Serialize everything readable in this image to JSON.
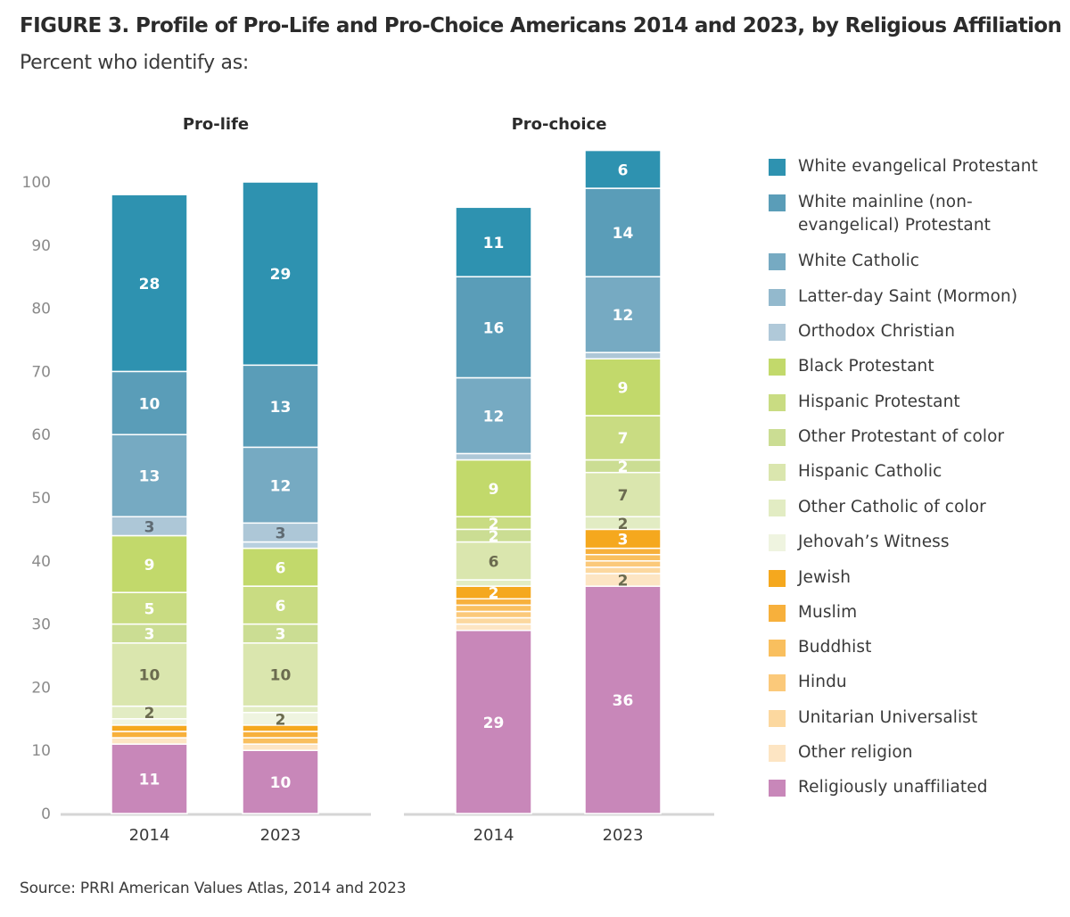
{
  "title": "FIGURE 3. Profile of Pro-Life and Pro-Choice Americans 2014 and 2023, by Religious Affiliation",
  "subtitle": "Percent who identify as:",
  "source": "Source: PRRI American Values Atlas, 2014 and 2023",
  "chart_data": {
    "type": "bar",
    "stacked": true,
    "title": "FIGURE 3. Profile of Pro-Life and Pro-Choice Americans 2014 and 2023, by Religious Affiliation",
    "subtitle": "Percent who identify as:",
    "xlabel": "",
    "ylabel": "",
    "ylim": [
      0,
      100
    ],
    "yticks": [
      0,
      10,
      20,
      30,
      40,
      50,
      60,
      70,
      80,
      90,
      100
    ],
    "grid": false,
    "legend_position": "right",
    "panels": [
      {
        "name": "Pro-life",
        "categories": [
          "2014",
          "2023"
        ]
      },
      {
        "name": "Pro-choice",
        "categories": [
          "2014",
          "2023"
        ]
      }
    ],
    "series": [
      {
        "name": "White evangelical Protestant",
        "color": "#2e92b0",
        "label_color": "#ffffff",
        "values": {
          "Pro-life": [
            28,
            29
          ],
          "Pro-choice": [
            11,
            6
          ]
        },
        "labels": {
          "Pro-life": [
            "28",
            "29"
          ],
          "Pro-choice": [
            "11",
            "6"
          ]
        }
      },
      {
        "name": "White mainline (non-evangelical) Protestant",
        "color": "#5a9db8",
        "label_color": "#ffffff",
        "values": {
          "Pro-life": [
            10,
            13
          ],
          "Pro-choice": [
            16,
            14
          ]
        },
        "labels": {
          "Pro-life": [
            "10",
            "13"
          ],
          "Pro-choice": [
            "16",
            "14"
          ]
        }
      },
      {
        "name": "White Catholic",
        "color": "#76aac2",
        "label_color": "#ffffff",
        "values": {
          "Pro-life": [
            13,
            12
          ],
          "Pro-choice": [
            12,
            12
          ]
        },
        "labels": {
          "Pro-life": [
            "13",
            "12"
          ],
          "Pro-choice": [
            "12",
            "12"
          ]
        }
      },
      {
        "name": "Latter-day Saint (Mormon)",
        "color": "#adc7d7",
        "label_color": "#5f6b73",
        "values": {
          "Pro-life": [
            3,
            3
          ],
          "Pro-choice": [
            1,
            1
          ]
        },
        "labels": {
          "Pro-life": [
            "3",
            "3"
          ],
          "Pro-choice": [
            "",
            ""
          ]
        }
      },
      {
        "name": "Orthodox Christian",
        "color": "#b8d0df",
        "label_color": "#5f6b73",
        "values": {
          "Pro-life": [
            0,
            1
          ],
          "Pro-choice": [
            0,
            0
          ]
        },
        "labels": {
          "Pro-life": [
            "",
            ""
          ],
          "Pro-choice": [
            "",
            ""
          ]
        }
      },
      {
        "name": "Black Protestant",
        "color": "#c2d96b",
        "label_color": "#ffffff",
        "values": {
          "Pro-life": [
            9,
            6
          ],
          "Pro-choice": [
            9,
            9
          ]
        },
        "labels": {
          "Pro-life": [
            "9",
            "6"
          ],
          "Pro-choice": [
            "9",
            "9"
          ]
        }
      },
      {
        "name": "Hispanic Protestant",
        "color": "#c9dc82",
        "label_color": "#ffffff",
        "values": {
          "Pro-life": [
            5,
            6
          ],
          "Pro-choice": [
            2,
            7
          ]
        },
        "labels": {
          "Pro-life": [
            "5",
            "6"
          ],
          "Pro-choice": [
            "2",
            "7"
          ]
        }
      },
      {
        "name": "Other Protestant of color",
        "color": "#cbdd93",
        "label_color": "#ffffff",
        "values": {
          "Pro-life": [
            3,
            3
          ],
          "Pro-choice": [
            2,
            2
          ]
        },
        "labels": {
          "Pro-life": [
            "3",
            "3"
          ],
          "Pro-choice": [
            "2",
            "2"
          ]
        }
      },
      {
        "name": "Hispanic Catholic",
        "color": "#dae6ae",
        "label_color": "#6b6b4f",
        "values": {
          "Pro-life": [
            10,
            10
          ],
          "Pro-choice": [
            6,
            7
          ]
        },
        "labels": {
          "Pro-life": [
            "10",
            "10"
          ],
          "Pro-choice": [
            "6",
            "7"
          ]
        }
      },
      {
        "name": "Other Catholic of color",
        "color": "#e2ecc3",
        "label_color": "#6b6b4f",
        "values": {
          "Pro-life": [
            2,
            1
          ],
          "Pro-choice": [
            1,
            2
          ]
        },
        "labels": {
          "Pro-life": [
            "2",
            ""
          ],
          "Pro-choice": [
            "",
            "2"
          ]
        }
      },
      {
        "name": "Jehovah’s Witness",
        "color": "#eff4e0",
        "label_color": "#6b6b4f",
        "values": {
          "Pro-life": [
            1,
            2
          ],
          "Pro-choice": [
            0,
            0
          ]
        },
        "labels": {
          "Pro-life": [
            "",
            "2"
          ],
          "Pro-choice": [
            "",
            ""
          ]
        }
      },
      {
        "name": "Jewish",
        "color": "#f5a81e",
        "label_color": "#ffffff",
        "values": {
          "Pro-life": [
            1,
            1
          ],
          "Pro-choice": [
            2,
            3
          ]
        },
        "labels": {
          "Pro-life": [
            "",
            ""
          ],
          "Pro-choice": [
            "2",
            "3"
          ]
        }
      },
      {
        "name": "Muslim",
        "color": "#f7b03c",
        "label_color": "#ffffff",
        "values": {
          "Pro-life": [
            1,
            1
          ],
          "Pro-choice": [
            1,
            1
          ]
        },
        "labels": {
          "Pro-life": [
            "",
            ""
          ],
          "Pro-choice": [
            "",
            ""
          ]
        }
      },
      {
        "name": "Buddhist",
        "color": "#f9bf5e",
        "label_color": "#ffffff",
        "values": {
          "Pro-life": [
            0,
            1
          ],
          "Pro-choice": [
            1,
            1
          ]
        },
        "labels": {
          "Pro-life": [
            "",
            ""
          ],
          "Pro-choice": [
            "",
            ""
          ]
        }
      },
      {
        "name": "Hindu",
        "color": "#fbc97a",
        "label_color": "#ffffff",
        "values": {
          "Pro-life": [
            0,
            0
          ],
          "Pro-choice": [
            1,
            1
          ]
        },
        "labels": {
          "Pro-life": [
            "",
            ""
          ],
          "Pro-choice": [
            "",
            ""
          ]
        }
      },
      {
        "name": "Unitarian Universalist",
        "color": "#fcd89f",
        "label_color": "#ffffff",
        "values": {
          "Pro-life": [
            0,
            0
          ],
          "Pro-choice": [
            1,
            1
          ]
        },
        "labels": {
          "Pro-life": [
            "",
            ""
          ],
          "Pro-choice": [
            "",
            ""
          ]
        }
      },
      {
        "name": "Other religion",
        "color": "#fde5c3",
        "label_color": "#6b6b4f",
        "values": {
          "Pro-life": [
            1,
            1
          ],
          "Pro-choice": [
            1,
            2
          ]
        },
        "labels": {
          "Pro-life": [
            "",
            ""
          ],
          "Pro-choice": [
            "",
            "2"
          ]
        }
      },
      {
        "name": "Religiously unaffiliated",
        "color": "#c887b9",
        "label_color": "#ffffff",
        "values": {
          "Pro-life": [
            11,
            10
          ],
          "Pro-choice": [
            29,
            36
          ]
        },
        "labels": {
          "Pro-life": [
            "11",
            "10"
          ],
          "Pro-choice": [
            "29",
            "36"
          ]
        }
      }
    ]
  },
  "legend": [
    {
      "label": "White evangelical Protestant",
      "color": "#2e92b0"
    },
    {
      "label": "White mainline (non-evangelical) Protestant",
      "color": "#5a9db8"
    },
    {
      "label": "White Catholic",
      "color": "#76aac2"
    },
    {
      "label": "Latter-day Saint (Mormon)",
      "color": "#93b9cd"
    },
    {
      "label": "Orthodox Christian",
      "color": "#b0c9d9"
    },
    {
      "label": "Black Protestant",
      "color": "#c2d96b"
    },
    {
      "label": "Hispanic Protestant",
      "color": "#c9dc82"
    },
    {
      "label": "Other Protestant of color",
      "color": "#cbdd93"
    },
    {
      "label": "Hispanic Catholic",
      "color": "#dae6ae"
    },
    {
      "label": "Other Catholic of color",
      "color": "#e2ecc3"
    },
    {
      "label": "Jehovah’s Witness",
      "color": "#eff4e0"
    },
    {
      "label": "Jewish",
      "color": "#f5a81e"
    },
    {
      "label": "Muslim",
      "color": "#f7b03c"
    },
    {
      "label": "Buddhist",
      "color": "#f9bf5e"
    },
    {
      "label": "Hindu",
      "color": "#fbc97a"
    },
    {
      "label": "Unitarian Universalist",
      "color": "#fcd89f"
    },
    {
      "label": "Other religion",
      "color": "#fde5c3"
    },
    {
      "label": "Religiously unaffiliated",
      "color": "#c887b9"
    }
  ]
}
